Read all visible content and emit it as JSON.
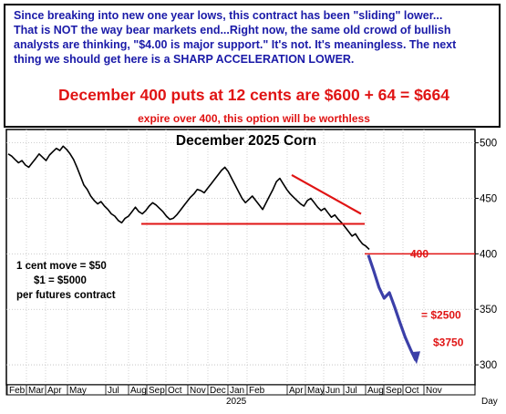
{
  "commentary": {
    "lines": [
      "Since breaking into new one year lows, this contract has been \"sliding\" lower...",
      "That is NOT the way bear markets end...Right now, the same old crowd of bullish",
      "analysts are thinking, \"$4.00 is major support.\" It's not. It's meaningless. The next",
      "thing we should get here is a SHARP ACCELERATION LOWER."
    ],
    "offer": "December 400 puts at 12 cents are $600 + 64 = $664",
    "expire_note": "expire over 400, this option will be worthless"
  },
  "colors": {
    "commentary_text": "#1a1aa8",
    "offer_text": "#e01414",
    "price_line": "#000000",
    "annotation_red": "#e01414",
    "projection_blue": "#3b3fa8"
  },
  "chart_data": {
    "type": "line",
    "title": "December 2025 Corn",
    "ylim": [
      282,
      512
    ],
    "y_ticks": [
      300,
      350,
      400,
      450,
      500
    ],
    "x_month_labels": [
      "Feb",
      "Mar",
      "Apr",
      "May",
      "Jul",
      "Aug",
      "Sep",
      "Oct",
      "Nov",
      "Dec",
      "Jan",
      "Feb",
      "Apr",
      "May",
      "Jun",
      "Jul",
      "Aug",
      "Sep",
      "Oct",
      "Nov"
    ],
    "year_label": "2025",
    "period_label": "Day",
    "grid": true,
    "series": [
      {
        "values": [
          490,
          488,
          485,
          482,
          484,
          480,
          478,
          482,
          486,
          490,
          487,
          484,
          489,
          492,
          495,
          493,
          497,
          494,
          490,
          485,
          478,
          470,
          462,
          458,
          452,
          448,
          445,
          447,
          443,
          440,
          436,
          434,
          430,
          428,
          432,
          434,
          438,
          442,
          438,
          436,
          439,
          443,
          446,
          444,
          441,
          438,
          434,
          431,
          432,
          435,
          439,
          443,
          447,
          451,
          454,
          458,
          457,
          455,
          459,
          463,
          467,
          471,
          475,
          478,
          474,
          468,
          462,
          456,
          450,
          446,
          449,
          452,
          448,
          444,
          440,
          446,
          452,
          458,
          465,
          468,
          463,
          458,
          454,
          451,
          448,
          445,
          443,
          448,
          450,
          446,
          442,
          439,
          441,
          437,
          433,
          435,
          431,
          428,
          424,
          420,
          416,
          418,
          413,
          409,
          407,
          404
        ]
      },
      {
        "values": [
          399,
          385,
          370,
          360,
          365,
          352,
          338,
          325,
          314,
          304
        ]
      }
    ],
    "annotations": {
      "support_level": 427,
      "resistance_start": 471,
      "resistance_end": 436,
      "level_400_label": "400",
      "target_1_label": "= $2500",
      "target_2_label": "$3750",
      "contract_note": [
        "1 cent move = $50",
        "$1 = $5000",
        "per futures contract"
      ]
    }
  }
}
